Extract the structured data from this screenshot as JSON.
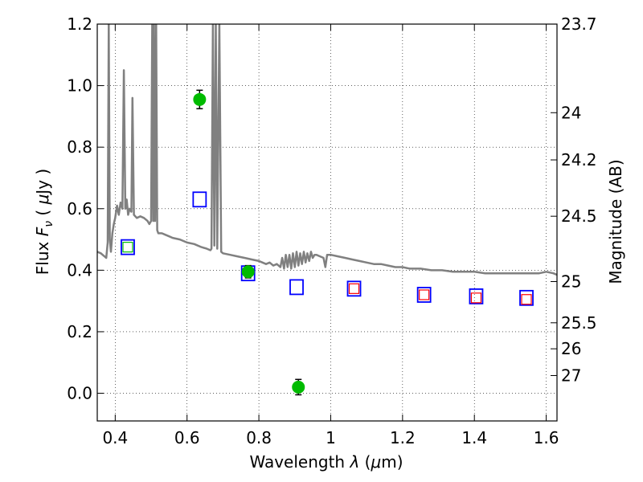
{
  "chart_data": {
    "type": "scatter",
    "title": "",
    "xlabel": "Wavelength  λ (μm)",
    "ylabel": "Flux  F_ν  ( μJy )",
    "ylabel_right": "Magnitude (AB)",
    "xlim": [
      0.35,
      1.63
    ],
    "ylim": [
      -0.09,
      1.2
    ],
    "grid": true,
    "legend": "none",
    "x_ticks": [
      {
        "value": 0.4,
        "label": "0.4"
      },
      {
        "value": 0.6,
        "label": "0.6"
      },
      {
        "value": 0.8,
        "label": "0.8"
      },
      {
        "value": 1.0,
        "label": "1"
      },
      {
        "value": 1.2,
        "label": "1.2"
      },
      {
        "value": 1.4,
        "label": "1.4"
      },
      {
        "value": 1.6,
        "label": "1.6"
      }
    ],
    "y_ticks": [
      {
        "value": 0.0,
        "label": "0.0"
      },
      {
        "value": 0.2,
        "label": "0.2"
      },
      {
        "value": 0.4,
        "label": "0.4"
      },
      {
        "value": 0.6,
        "label": "0.6"
      },
      {
        "value": 0.8,
        "label": "0.8"
      },
      {
        "value": 1.0,
        "label": "1.0"
      },
      {
        "value": 1.2,
        "label": "1.2"
      }
    ],
    "magnitude_ticks": [
      {
        "value": 23.7,
        "label": "23.7"
      },
      {
        "value": 24.0,
        "label": "24"
      },
      {
        "value": 24.2,
        "label": "24.2"
      },
      {
        "value": 24.5,
        "label": "24.5"
      },
      {
        "value": 25.0,
        "label": "25"
      },
      {
        "value": 25.5,
        "label": "25.5"
      },
      {
        "value": 26.0,
        "label": "26"
      },
      {
        "value": 27.0,
        "label": "27"
      }
    ],
    "series": [
      {
        "kind": "line",
        "color": "#808080",
        "points": [
          [
            0.35,
            0.46
          ],
          [
            0.36,
            0.455
          ],
          [
            0.37,
            0.445
          ],
          [
            0.375,
            0.44
          ],
          [
            0.379,
            0.49
          ],
          [
            0.382,
            1.2
          ],
          [
            0.385,
            0.5
          ],
          [
            0.388,
            0.46
          ],
          [
            0.392,
            0.52
          ],
          [
            0.396,
            0.55
          ],
          [
            0.4,
            0.57
          ],
          [
            0.405,
            0.61
          ],
          [
            0.41,
            0.58
          ],
          [
            0.415,
            0.62
          ],
          [
            0.42,
            0.6
          ],
          [
            0.424,
            1.05
          ],
          [
            0.428,
            0.6
          ],
          [
            0.432,
            0.63
          ],
          [
            0.436,
            0.58
          ],
          [
            0.44,
            0.6
          ],
          [
            0.445,
            0.59
          ],
          [
            0.448,
            0.96
          ],
          [
            0.452,
            0.58
          ],
          [
            0.46,
            0.57
          ],
          [
            0.47,
            0.575
          ],
          [
            0.48,
            0.57
          ],
          [
            0.49,
            0.56
          ],
          [
            0.495,
            0.55
          ],
          [
            0.5,
            0.56
          ],
          [
            0.503,
            1.2
          ],
          [
            0.506,
            0.56
          ],
          [
            0.508,
            1.2
          ],
          [
            0.511,
            0.56
          ],
          [
            0.514,
            1.2
          ],
          [
            0.517,
            0.53
          ],
          [
            0.52,
            0.52
          ],
          [
            0.53,
            0.52
          ],
          [
            0.54,
            0.515
          ],
          [
            0.55,
            0.51
          ],
          [
            0.56,
            0.505
          ],
          [
            0.58,
            0.5
          ],
          [
            0.6,
            0.49
          ],
          [
            0.62,
            0.485
          ],
          [
            0.64,
            0.475
          ],
          [
            0.655,
            0.47
          ],
          [
            0.665,
            0.465
          ],
          [
            0.668,
            0.47
          ],
          [
            0.672,
            1.2
          ],
          [
            0.676,
            0.48
          ],
          [
            0.68,
            1.2
          ],
          [
            0.684,
            0.47
          ],
          [
            0.69,
            1.2
          ],
          [
            0.695,
            0.46
          ],
          [
            0.7,
            0.455
          ],
          [
            0.72,
            0.45
          ],
          [
            0.74,
            0.445
          ],
          [
            0.76,
            0.44
          ],
          [
            0.78,
            0.435
          ],
          [
            0.8,
            0.43
          ],
          [
            0.81,
            0.425
          ],
          [
            0.82,
            0.42
          ],
          [
            0.83,
            0.425
          ],
          [
            0.84,
            0.415
          ],
          [
            0.85,
            0.42
          ],
          [
            0.86,
            0.41
          ],
          [
            0.865,
            0.44
          ],
          [
            0.87,
            0.405
          ],
          [
            0.875,
            0.45
          ],
          [
            0.88,
            0.41
          ],
          [
            0.885,
            0.45
          ],
          [
            0.89,
            0.405
          ],
          [
            0.895,
            0.455
          ],
          [
            0.9,
            0.41
          ],
          [
            0.905,
            0.46
          ],
          [
            0.91,
            0.415
          ],
          [
            0.915,
            0.455
          ],
          [
            0.92,
            0.42
          ],
          [
            0.925,
            0.46
          ],
          [
            0.93,
            0.425
          ],
          [
            0.935,
            0.455
          ],
          [
            0.94,
            0.43
          ],
          [
            0.945,
            0.46
          ],
          [
            0.95,
            0.44
          ],
          [
            0.955,
            0.45
          ],
          [
            0.96,
            0.45
          ],
          [
            0.97,
            0.445
          ],
          [
            0.98,
            0.44
          ],
          [
            0.985,
            0.41
          ],
          [
            0.99,
            0.45
          ],
          [
            1.0,
            0.45
          ],
          [
            1.02,
            0.445
          ],
          [
            1.04,
            0.44
          ],
          [
            1.06,
            0.435
          ],
          [
            1.08,
            0.43
          ],
          [
            1.1,
            0.425
          ],
          [
            1.12,
            0.42
          ],
          [
            1.14,
            0.42
          ],
          [
            1.16,
            0.415
          ],
          [
            1.18,
            0.41
          ],
          [
            1.2,
            0.41
          ],
          [
            1.22,
            0.405
          ],
          [
            1.25,
            0.405
          ],
          [
            1.28,
            0.4
          ],
          [
            1.31,
            0.4
          ],
          [
            1.34,
            0.395
          ],
          [
            1.37,
            0.395
          ],
          [
            1.4,
            0.395
          ],
          [
            1.43,
            0.39
          ],
          [
            1.46,
            0.39
          ],
          [
            1.49,
            0.39
          ],
          [
            1.52,
            0.39
          ],
          [
            1.55,
            0.39
          ],
          [
            1.58,
            0.39
          ],
          [
            1.6,
            0.395
          ],
          [
            1.62,
            0.39
          ],
          [
            1.63,
            0.385
          ]
        ]
      },
      {
        "kind": "open_square",
        "color": "#0000ff",
        "points": [
          [
            0.435,
            0.475
          ],
          [
            0.635,
            0.63
          ],
          [
            0.77,
            0.39
          ],
          [
            0.905,
            0.345
          ],
          [
            1.065,
            0.34
          ],
          [
            1.26,
            0.32
          ],
          [
            1.405,
            0.315
          ],
          [
            1.545,
            0.31
          ]
        ]
      },
      {
        "kind": "open_square_small",
        "color": "#ff0000",
        "points": [
          [
            1.065,
            0.34
          ],
          [
            1.26,
            0.32
          ],
          [
            1.405,
            0.31
          ],
          [
            1.545,
            0.305
          ]
        ]
      },
      {
        "kind": "open_square_small",
        "color": "#00c000",
        "points": [
          [
            0.435,
            0.475
          ]
        ]
      },
      {
        "kind": "filled_circle_errorbar",
        "color": "#00bb00",
        "points": [
          [
            0.635,
            0.955,
            0.03
          ],
          [
            0.77,
            0.395,
            0.02
          ],
          [
            0.91,
            0.02,
            0.025
          ]
        ]
      }
    ]
  }
}
